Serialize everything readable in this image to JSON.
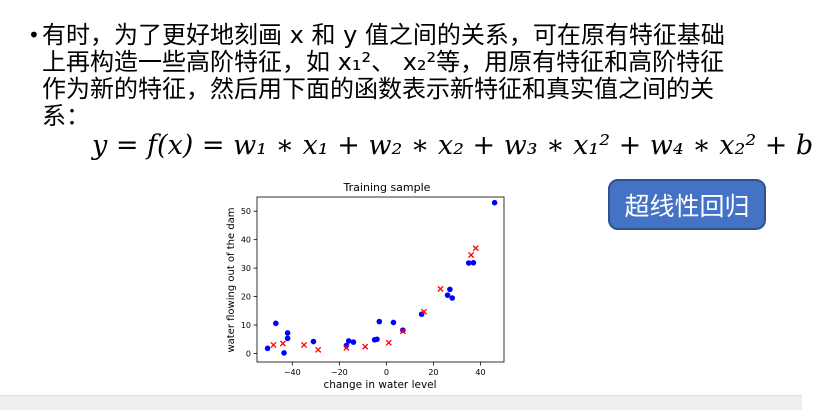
{
  "slide": {
    "bullet_line1": "有时，为了更好地刻画 x 和 y 值之间的关系，可在原有特征基础",
    "bullet_line2": "上再构造一些高阶特征，如 x₁²、 x₂²等，用原有特征和高阶特征",
    "bullet_line3": "作为新的特征，然后用下面的函数表示新特征和真实值之间的关",
    "bullet_line4": "系：",
    "formula": "y = f(x) = w₁ ∗ x₁ + w₂ ∗ x₂ + w₃ ∗ x₁² + w₄ ∗ x₂² + b",
    "tag_label": "超线性回归"
  },
  "chart_data": {
    "type": "scatter",
    "title": "Training sample",
    "xlabel": "change in water level",
    "ylabel": "water flowing out of the dam",
    "xlim": [
      -55,
      50
    ],
    "ylim": [
      -3,
      55
    ],
    "xticks": [
      -40,
      -20,
      0,
      20,
      40
    ],
    "yticks": [
      0,
      10,
      20,
      30,
      40,
      50
    ],
    "grid": false,
    "series": [
      {
        "marker": "circle",
        "color": "#0000ff",
        "points": [
          [
            -50.5,
            1.8
          ],
          [
            -47,
            10.6
          ],
          [
            -43.5,
            0.2
          ],
          [
            -42,
            7.2
          ],
          [
            -42,
            5.3
          ],
          [
            -31,
            4.2
          ],
          [
            -17,
            2.8
          ],
          [
            -16,
            4.4
          ],
          [
            -14,
            4.0
          ],
          [
            -5,
            4.8
          ],
          [
            -4,
            5.0
          ],
          [
            -3,
            11.2
          ],
          [
            3,
            10.9
          ],
          [
            7,
            8.2
          ],
          [
            15,
            13.8
          ],
          [
            26,
            20.5
          ],
          [
            27,
            22.5
          ],
          [
            28,
            19.5
          ],
          [
            35,
            31.8
          ],
          [
            37,
            31.9
          ],
          [
            46,
            53
          ]
        ]
      },
      {
        "marker": "x",
        "color": "#ff0000",
        "points": [
          [
            -48,
            3.0
          ],
          [
            -44,
            3.5
          ],
          [
            -35,
            3.0
          ],
          [
            -29,
            1.3
          ],
          [
            -17,
            2.0
          ],
          [
            -9,
            2.4
          ],
          [
            1,
            3.8
          ],
          [
            7,
            7.8
          ],
          [
            16,
            14.7
          ],
          [
            23,
            22.7
          ],
          [
            36,
            34.6
          ],
          [
            38,
            37
          ]
        ]
      }
    ]
  }
}
